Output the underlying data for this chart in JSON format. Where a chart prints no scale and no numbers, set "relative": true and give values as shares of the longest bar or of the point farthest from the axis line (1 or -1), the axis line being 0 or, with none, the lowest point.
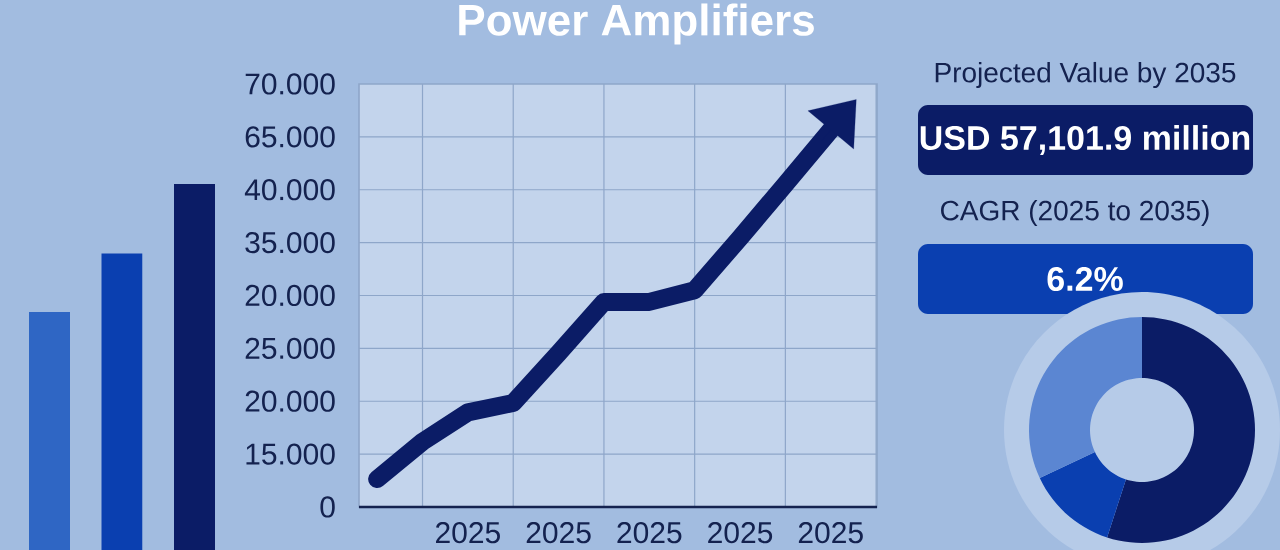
{
  "chart_data": [
    {
      "type": "bar",
      "relative": true,
      "categories": [
        null,
        null,
        null
      ],
      "values": [
        0.65,
        0.81,
        1
      ],
      "colors": [
        "#2f66c4",
        "#0a3fb0",
        "#0b1c66"
      ]
    },
    {
      "type": "line",
      "title": "Power Amplifiers",
      "relative": true,
      "categories": [
        null,
        null,
        "2025",
        null,
        "2025",
        null,
        "2025",
        null,
        "2025",
        null,
        "2025",
        null
      ],
      "values": [
        0.074,
        0.173,
        0.251,
        0.276,
        0.408,
        0.544,
        0.544,
        0.575,
        0.714,
        0.856,
        1,
        null
      ],
      "color": "#0b1c66",
      "line_style": "solid",
      "grid": true,
      "annotations": [
        "70.000",
        "65.000",
        "40.000",
        "35.000",
        "20.000",
        "25.000",
        "20.000",
        "15.000",
        "0"
      ]
    },
    {
      "type": "other",
      "annotations": [
        "Projected Value by 2035",
        "USD 57,101.9 million",
        "CAGR (2025 to 2035)",
        "6.2%"
      ]
    },
    {
      "type": "donut",
      "categories": [
        null,
        null,
        null
      ],
      "values": [
        55,
        13,
        32
      ],
      "colors": [
        "#0b1c66",
        "#0a3fb0",
        "#5b86d2"
      ]
    }
  ]
}
